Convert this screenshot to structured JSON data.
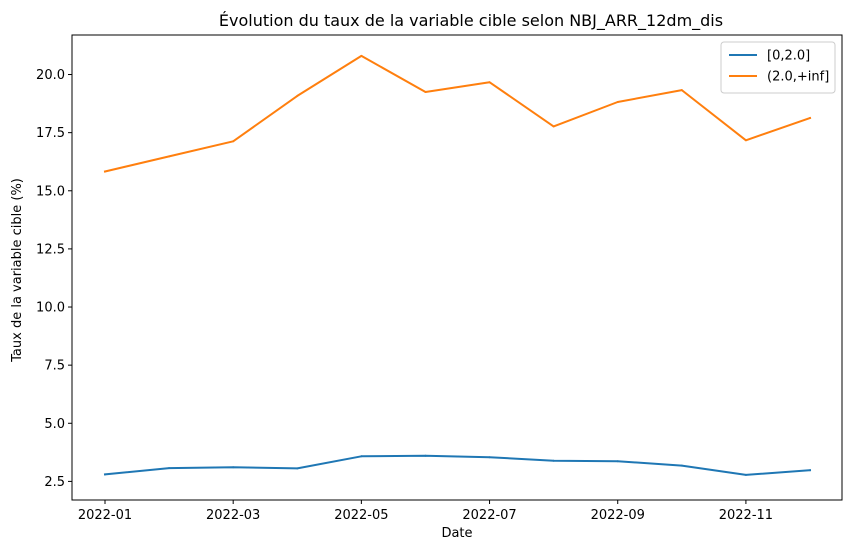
{
  "chart_data": {
    "type": "line",
    "title": "Évolution du taux de la variable cible selon NBJ_ARR_12dm_dis",
    "xlabel": "Date",
    "ylabel": "Taux de la variable cible (%)",
    "x": [
      "2022-01",
      "2022-02",
      "2022-03",
      "2022-04",
      "2022-05",
      "2022-06",
      "2022-07",
      "2022-08",
      "2022-09",
      "2022-10",
      "2022-11",
      "2022-12"
    ],
    "x_tick_labels": [
      "2022-01",
      "2022-03",
      "2022-05",
      "2022-07",
      "2022-09",
      "2022-11"
    ],
    "y_ticks": [
      2.5,
      5.0,
      7.5,
      10.0,
      12.5,
      15.0,
      17.5,
      20.0
    ],
    "y_tick_labels": [
      "2.5",
      "5.0",
      "7.5",
      "10.0",
      "12.5",
      "15.0",
      "17.5",
      "20.0"
    ],
    "ylim": [
      1.7,
      21.7
    ],
    "grid": false,
    "legend_position": "top-right",
    "series": [
      {
        "name": "[0,2.0]",
        "color": "#1f77b4",
        "values": [
          2.8,
          3.07,
          3.11,
          3.06,
          3.58,
          3.6,
          3.54,
          3.39,
          3.37,
          3.18,
          2.78,
          2.98
        ]
      },
      {
        "name": "(2.0,+inf]",
        "color": "#ff7f0e",
        "values": [
          15.83,
          16.48,
          17.13,
          19.08,
          20.8,
          19.25,
          19.67,
          17.77,
          18.82,
          19.33,
          17.17,
          18.13
        ]
      }
    ]
  }
}
